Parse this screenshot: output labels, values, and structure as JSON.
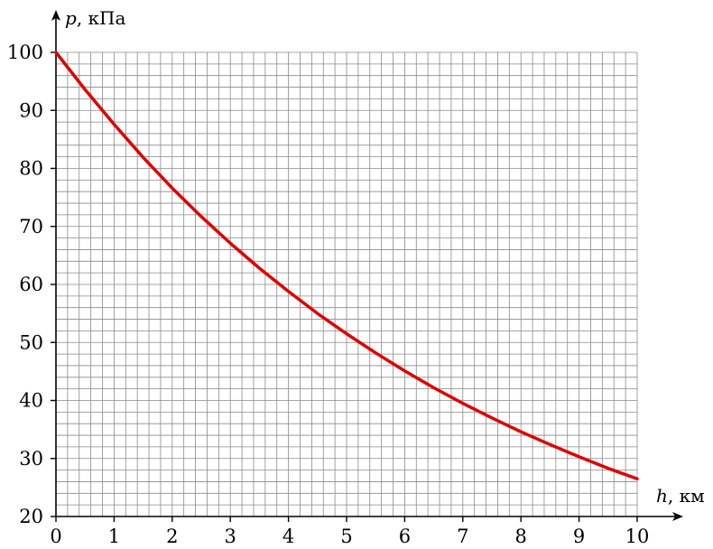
{
  "chart_data": {
    "type": "line",
    "xlabel_var": "h",
    "xlabel_unit": ", км",
    "ylabel_var": "p",
    "ylabel_unit": ", кПа",
    "xlim": [
      0,
      10
    ],
    "ylim": [
      20,
      100
    ],
    "grid": true,
    "x_minor_step": 0.2,
    "y_minor_step": 2,
    "x_ticks": [
      0,
      1,
      2,
      3,
      4,
      5,
      6,
      7,
      8,
      9,
      10
    ],
    "y_ticks": [
      20,
      30,
      40,
      50,
      60,
      70,
      80,
      90,
      100
    ],
    "line_color": "#e00000",
    "grid_color": "#8a8a8a",
    "series": [
      {
        "x": [
          0,
          0.5,
          1,
          1.5,
          2,
          2.5,
          3,
          3.5,
          4,
          4.5,
          5,
          5.5,
          6,
          6.5,
          7,
          7.5,
          8,
          8.5,
          9,
          9.5,
          10
        ],
        "values": [
          100,
          93.6,
          87.6,
          81.9,
          76.6,
          71.7,
          67.1,
          62.8,
          58.8,
          55.0,
          51.5,
          48.2,
          45.1,
          42.2,
          39.5,
          37.0,
          34.6,
          32.4,
          30.3,
          28.3,
          26.5
        ]
      }
    ]
  }
}
